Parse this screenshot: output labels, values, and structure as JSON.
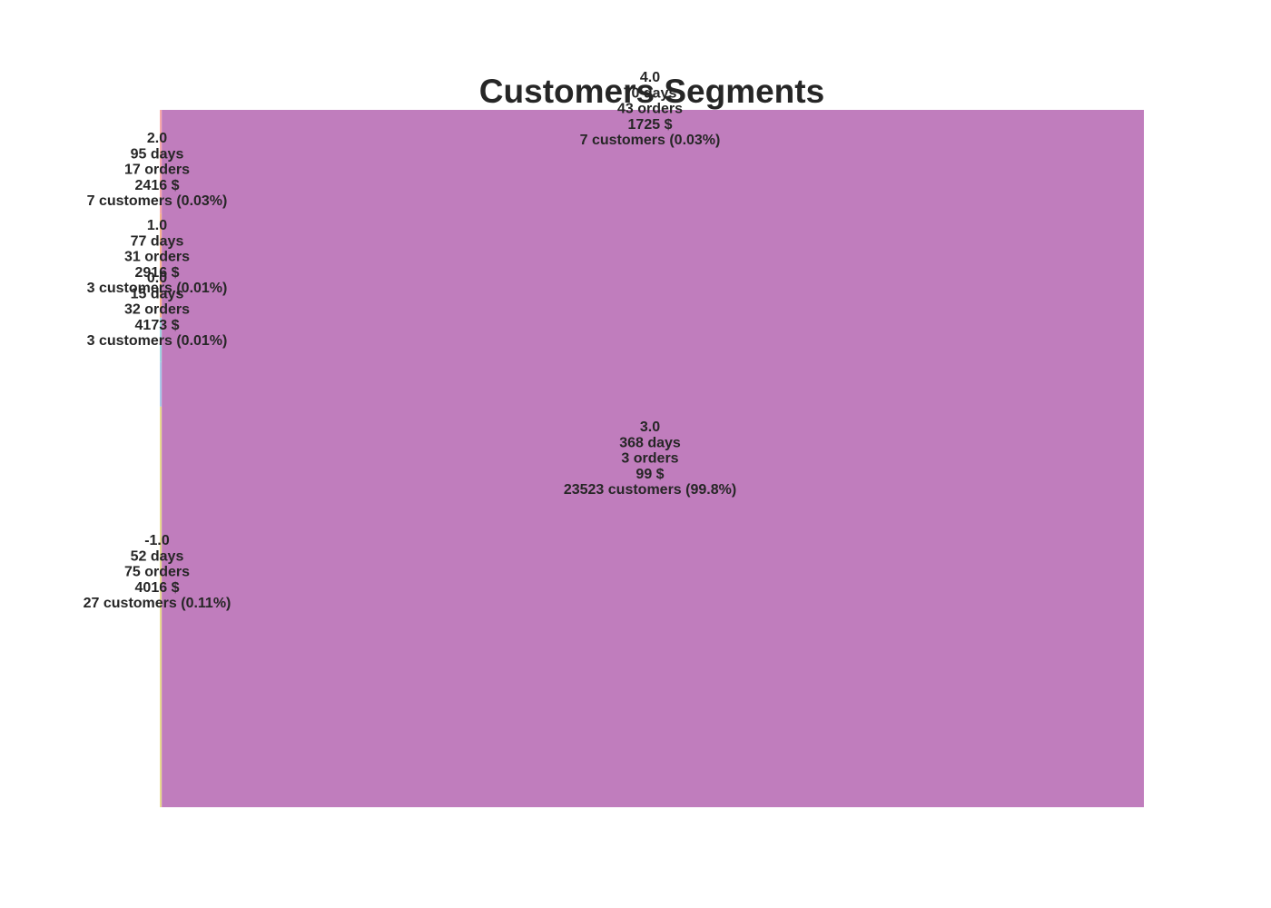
{
  "chart_data": {
    "type": "treemap",
    "title": "Customers Segments",
    "xlabel": "",
    "ylabel": "",
    "grid": false,
    "legend": "none",
    "segments": [
      {
        "segment": "4.0",
        "days": "70 days",
        "orders": "43 orders",
        "amount": "1725 $",
        "customers": "7 customers (0.03%)",
        "count": 7,
        "color": "#F7A8A8"
      },
      {
        "segment": "2.0",
        "days": "95 days",
        "orders": "17 orders",
        "amount": "2416 $",
        "customers": "7 customers (0.03%)",
        "count": 7,
        "color": "#F6B38A"
      },
      {
        "segment": "1.0",
        "days": "77 days",
        "orders": "31 orders",
        "amount": "2916 $",
        "customers": "3 customers (0.01%)",
        "count": 3,
        "color": "#9FD3DE"
      },
      {
        "segment": "0.0",
        "days": "15 days",
        "orders": "32 orders",
        "amount": "4173 $",
        "customers": "3 customers (0.01%)",
        "count": 3,
        "color": "#A9C8E8"
      },
      {
        "segment": "3.0",
        "days": "368 days",
        "orders": "3 orders",
        "amount": "99 $",
        "customers": "23523 customers (99.8%)",
        "count": 23523,
        "color": "#C07DBD"
      },
      {
        "segment": "-1.0",
        "days": "52 days",
        "orders": "75 orders",
        "amount": "4016 $",
        "customers": "27 customers (0.11%)",
        "count": 27,
        "color": "#E6D98E"
      }
    ]
  }
}
